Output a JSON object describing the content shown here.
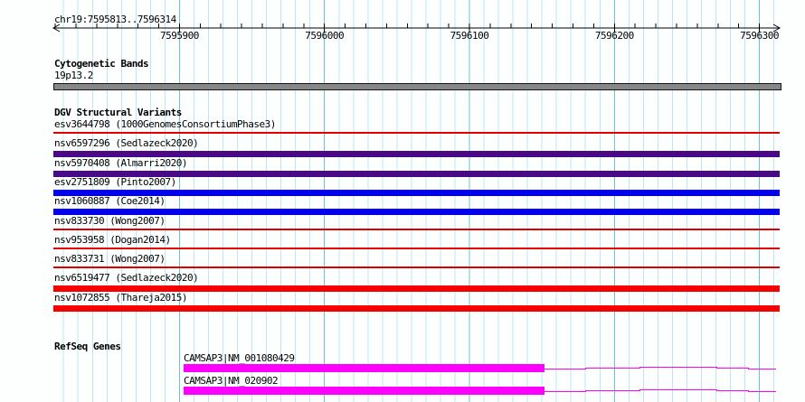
{
  "header": {
    "region_label": "chr19:7595813..7596314"
  },
  "axis": {
    "bp_start": 7595813,
    "bp_end": 7596314,
    "major_ticks": [
      {
        "bp": 7595900,
        "label": "7595900"
      },
      {
        "bp": 7596000,
        "label": "7596000"
      },
      {
        "bp": 7596100,
        "label": "7596100"
      },
      {
        "bp": 7596200,
        "label": "7596200"
      },
      {
        "bp": 7596300,
        "label": "7596300"
      }
    ],
    "minor_grid_step_bp": 10,
    "ruler_subticks_per_major": 7
  },
  "colors": {
    "background": "#fdfefe",
    "minor_grid": "#b9e9ef",
    "major_grid": "#6fc1d7",
    "ruler": "#000000",
    "text": "#000000",
    "cytoband_fill": "#878787",
    "cytoband_border": "#141414",
    "variant_thin_red": "#e10000",
    "variant_red": "#f60000",
    "variant_purple": "#4a0a87",
    "variant_blue": "#0000ef",
    "gene_magenta": "#ff00ff"
  },
  "sections": {
    "cytobands": {
      "title": "Cytogenetic Bands",
      "band_label": "19p13.2"
    },
    "dgv": {
      "title": "DGV Structural Variants",
      "tracks": [
        {
          "id": "esv3644798",
          "study": "1000GenomesConsortiumPhase3",
          "style": "line",
          "color_key": "variant_thin_red"
        },
        {
          "id": "nsv6597296",
          "study": "Sedlazeck2020",
          "style": "bar",
          "color_key": "variant_purple"
        },
        {
          "id": "nsv5970408",
          "study": "Almarri2020",
          "style": "bar",
          "color_key": "variant_purple"
        },
        {
          "id": "esv2751809",
          "study": "Pinto2007",
          "style": "bar",
          "color_key": "variant_blue"
        },
        {
          "id": "nsv1060887",
          "study": "Coe2014",
          "style": "bar",
          "color_key": "variant_blue"
        },
        {
          "id": "nsv833730",
          "study": "Wong2007",
          "style": "line",
          "color_key": "variant_thin_red"
        },
        {
          "id": "nsv953958",
          "study": "Dogan2014",
          "style": "line",
          "color_key": "variant_thin_red"
        },
        {
          "id": "nsv833731",
          "study": "Wong2007",
          "style": "line",
          "color_key": "variant_thin_red"
        },
        {
          "id": "nsv6519477",
          "study": "Sedlazeck2020",
          "style": "bar",
          "color_key": "variant_red"
        },
        {
          "id": "nsv1072855",
          "study": "Thareja2015",
          "style": "bar",
          "color_key": "variant_red"
        }
      ]
    },
    "refseq": {
      "title": "RefSeq Genes",
      "genes": [
        {
          "label": "CAMSAP3|NM_001080429",
          "exon_start_bp": 7595903,
          "exon_end_bp": 7596152
        },
        {
          "label": "CAMSAP3|NM_020902",
          "exon_start_bp": 7595903,
          "exon_end_bp": 7596152
        }
      ]
    }
  }
}
